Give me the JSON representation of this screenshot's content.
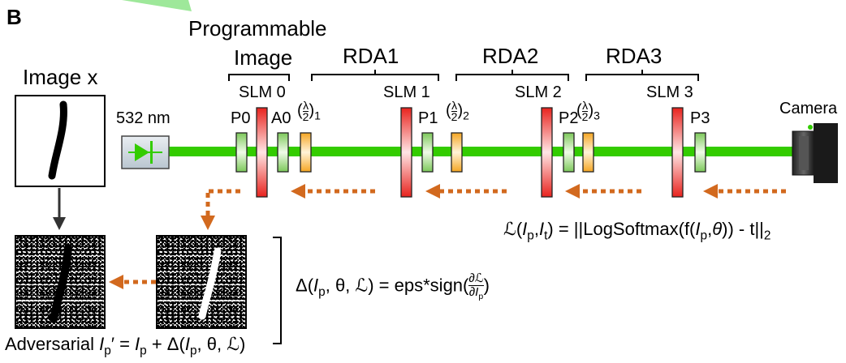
{
  "panel_label": "B",
  "image_x_label": "Image x",
  "programmable_label": "Programmable",
  "image_label": "Image",
  "rda_labels": [
    "RDA1",
    "RDA2",
    "RDA3"
  ],
  "slm_labels": [
    "SLM 0",
    "SLM 1",
    "SLM 2",
    "SLM 3"
  ],
  "laser_label": "532 nm",
  "camera_label": "Camera",
  "polarizer_labels": [
    "P0",
    "A0",
    "P1",
    "P2",
    "P3"
  ],
  "halfwave_subscripts": [
    "1",
    "2",
    "3"
  ],
  "loss_formula": {
    "lhs": "ℒ(",
    "ip": "I",
    "p": "p",
    "comma": ",",
    "it": "I",
    "t": "t",
    "eq": ") = ||LogSoftmax(f(",
    "theta": "θ",
    "tail": ")) - t||",
    "two": "2"
  },
  "delta_formula": {
    "start": "Δ(",
    "ip": "I",
    "p": "p",
    "mid": ", θ, ℒ) = eps*sign(",
    "num": "∂ℒ",
    "den": "∂I",
    "den_sub": "p",
    "end": ")"
  },
  "adversarial_formula": {
    "word": "Adversarial ",
    "ip": "I",
    "p": "p",
    "prime": "′ = ",
    "plus": " + Δ(",
    "rest": ", θ, ℒ)"
  },
  "colors": {
    "beam": "#33cc00",
    "arrow": "#d2691e",
    "slm_red": "#e8231e",
    "polarizer_green": "#8fd16a",
    "halfwave_orange": "#f5a623"
  }
}
